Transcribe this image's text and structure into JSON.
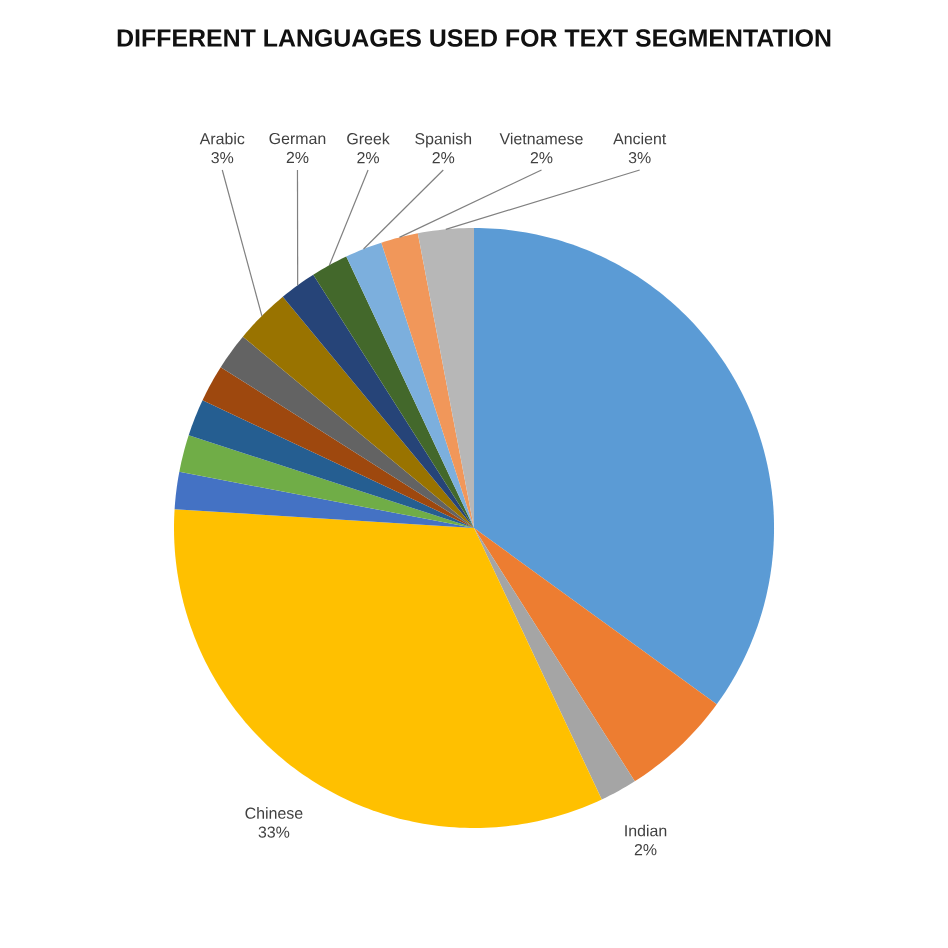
{
  "chart_data": {
    "type": "pie",
    "title": "DIFFERENT LANGUAGES USED FOR TEXT SEGMENTATION",
    "categories": [
      null,
      null,
      "Indian",
      "Chinese",
      null,
      null,
      null,
      null,
      null,
      "Arabic",
      "German",
      "Greek",
      "Spanish",
      "Vietnamese",
      "Ancient"
    ],
    "values": [
      35,
      6,
      2,
      33,
      2,
      2,
      2,
      2,
      2,
      3,
      2,
      2,
      2,
      2,
      3
    ],
    "value_labels": [
      null,
      null,
      "2%",
      "33%",
      null,
      null,
      null,
      null,
      null,
      "3%",
      "2%",
      "2%",
      "2%",
      "2%",
      "3%"
    ],
    "colors": [
      "#5b9bd5",
      "#ed7d31",
      "#a5a5a5",
      "#ffc000",
      "#4472c4",
      "#70ad47",
      "#255e91",
      "#9e480e",
      "#636363",
      "#997300",
      "#264478",
      "#43682b",
      "#7cafdd",
      "#f1975a",
      "#b7b7b7"
    ]
  }
}
